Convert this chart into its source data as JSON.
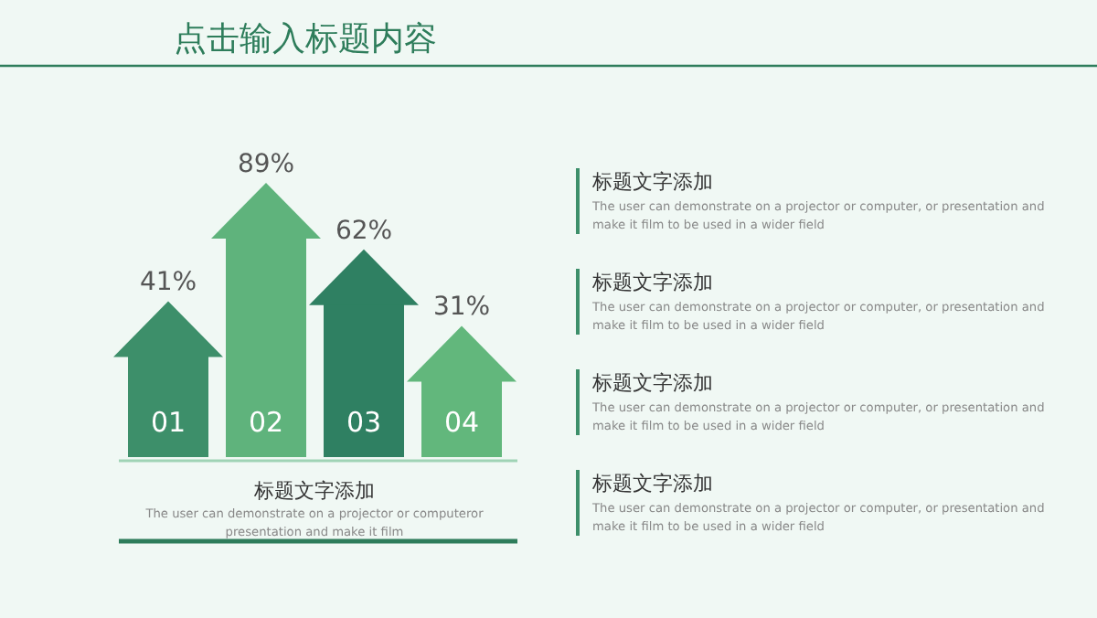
{
  "chart_data": {
    "type": "bar",
    "title": "点击输入标题内容",
    "categories": [
      "01",
      "02",
      "03",
      "04"
    ],
    "values": [
      41,
      89,
      62,
      31
    ],
    "value_labels": [
      "41%",
      "89%",
      "62%",
      "31%"
    ],
    "colors": [
      "#3d8f6a",
      "#5fb37c",
      "#2f8062",
      "#62b77c"
    ],
    "annotations": [
      "标题文字添加",
      "The user can demonstrate on a projector or computeror presentation and make it film",
      "标题文字添加",
      "The user can demonstrate on a projector or computer, or presentation and make it film to be used in a wider field",
      "标题文字添加",
      "The user can demonstrate on a projector or computer, or presentation and make it film to be used in a wider field",
      "标题文字添加",
      "The user can demonstrate on a projector or computer, or presentation and make it film to be used in a wider field",
      "标题文字添加",
      "The user can demonstrate on a projector or computer, or presentation and make it film to be used in a wider field"
    ]
  }
}
